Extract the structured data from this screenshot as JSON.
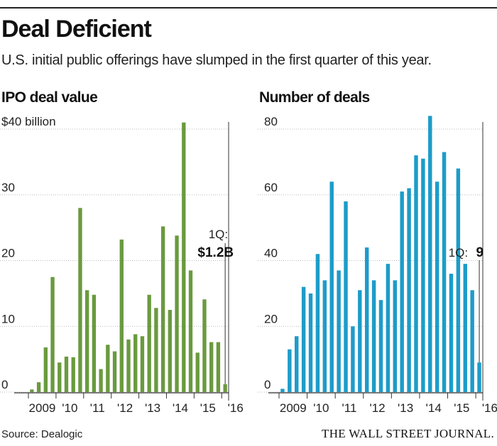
{
  "header": {
    "title": "Deal Deficient",
    "subtitle": "U.S. initial public offerings have slumped in the first quarter of this year."
  },
  "footer": {
    "source": "Source: Dealogic",
    "publisher": "THE WALL STREET JOURNAL."
  },
  "colors": {
    "value_bars": "#6a9a3f",
    "count_bars": "#1d9cc9"
  },
  "chart_data": [
    {
      "type": "bar",
      "title": "IPO deal value",
      "unit_prefix": "$",
      "unit_suffix": " billion",
      "ylim": [
        0,
        40
      ],
      "yticks": [
        0,
        10,
        20,
        30,
        40
      ],
      "ytick_labels": [
        "0",
        "10",
        "20",
        "30",
        "$40 billion"
      ],
      "grid": true,
      "categories": [
        "2009 Q1",
        "2009 Q2",
        "2009 Q3",
        "2009 Q4",
        "2010 Q1",
        "2010 Q2",
        "2010 Q3",
        "2010 Q4",
        "2011 Q1",
        "2011 Q2",
        "2011 Q3",
        "2011 Q4",
        "2012 Q1",
        "2012 Q2",
        "2012 Q3",
        "2012 Q4",
        "2013 Q1",
        "2013 Q2",
        "2013 Q3",
        "2013 Q4",
        "2014 Q1",
        "2014 Q2",
        "2014 Q3",
        "2014 Q4",
        "2015 Q1",
        "2015 Q2",
        "2015 Q3",
        "2015 Q4",
        "2016 Q1"
      ],
      "x_labels": [
        "2009",
        "'10",
        "'11",
        "'12",
        "'13",
        "'14",
        "'15",
        "'16"
      ],
      "values": [
        0.4,
        1.5,
        6.8,
        17.5,
        4.5,
        5.4,
        5.3,
        28.0,
        15.5,
        14.8,
        3.5,
        7.2,
        6.2,
        23.2,
        8.0,
        8.8,
        8.5,
        14.8,
        12.8,
        25.2,
        12.5,
        23.8,
        41.0,
        18.5,
        6.0,
        14.1,
        7.6,
        7.6,
        1.2
      ],
      "annotation": {
        "label": "1Q:",
        "value": "$1.2B"
      }
    },
    {
      "type": "bar",
      "title": "Number of deals",
      "ylim": [
        0,
        80
      ],
      "yticks": [
        0,
        20,
        40,
        60,
        80
      ],
      "ytick_labels": [
        "0",
        "20",
        "40",
        "60",
        "80"
      ],
      "grid": true,
      "categories": [
        "2009 Q1",
        "2009 Q2",
        "2009 Q3",
        "2009 Q4",
        "2010 Q1",
        "2010 Q2",
        "2010 Q3",
        "2010 Q4",
        "2011 Q1",
        "2011 Q2",
        "2011 Q3",
        "2011 Q4",
        "2012 Q1",
        "2012 Q2",
        "2012 Q3",
        "2012 Q4",
        "2013 Q1",
        "2013 Q2",
        "2013 Q3",
        "2013 Q4",
        "2014 Q1",
        "2014 Q2",
        "2014 Q3",
        "2014 Q4",
        "2015 Q1",
        "2015 Q2",
        "2015 Q3",
        "2015 Q4",
        "2016 Q1"
      ],
      "x_labels": [
        "2009",
        "'10",
        "'11",
        "'12",
        "'13",
        "'14",
        "'15",
        "'16"
      ],
      "values": [
        1,
        13,
        17,
        32,
        30,
        42,
        34,
        64,
        37,
        58,
        20,
        31,
        44,
        34,
        28,
        39,
        34,
        61,
        62,
        72,
        71,
        84,
        64,
        73,
        36,
        68,
        39,
        31,
        9
      ],
      "annotation": {
        "label": "1Q:",
        "value": "9"
      }
    }
  ]
}
